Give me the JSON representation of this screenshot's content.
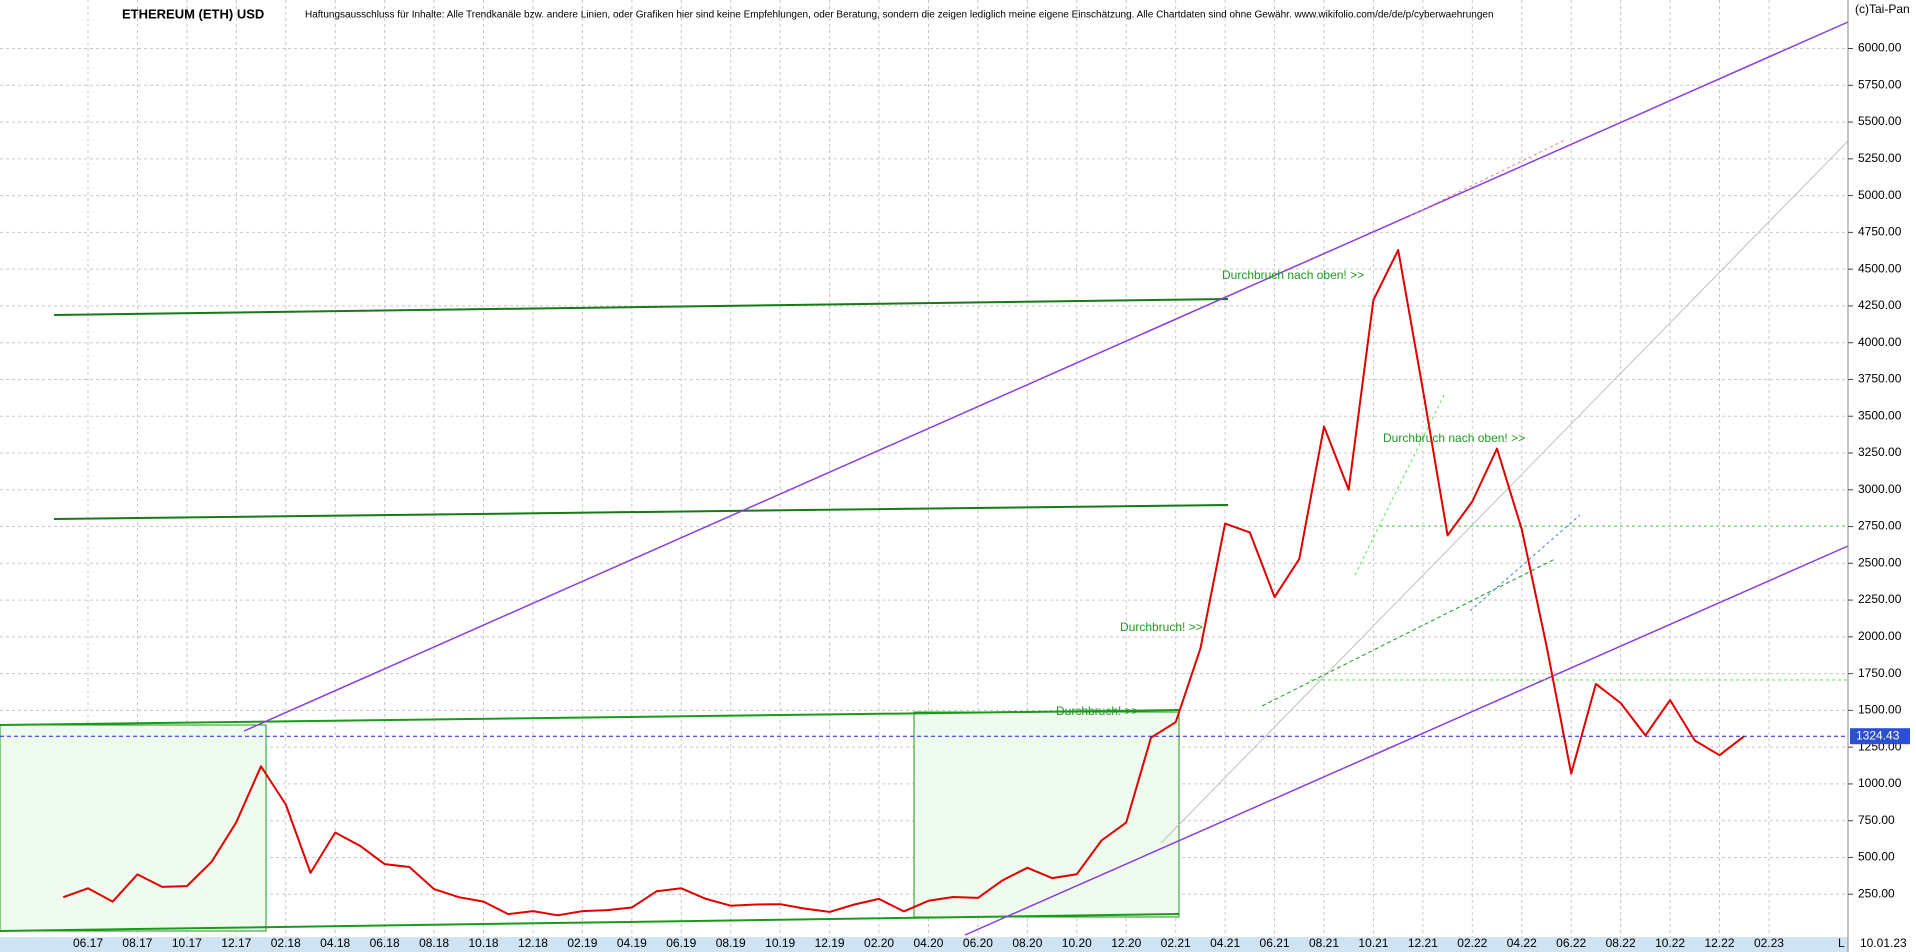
{
  "chart_data": {
    "type": "line",
    "title": "ETHEREUM (ETH) USD",
    "subtitle": "Haftungsausschluss für Inhalte: Alle Trendkanäle bzw. andere Linien, oder Grafiken hier sind keine Empfehlungen, oder Beratung, sondern die zeigen lediglich meine eigene Einschätzung. Alle Chartdaten sind ohne Gewähr.  www.wikifolio.com/de/de/p/cyberwaehrungen",
    "source": "(c)Tai-Pan",
    "date_label": "10.01.23",
    "scale_label": "L",
    "last_value": 1324.43,
    "x": [
      "05.17",
      "06.17",
      "07.17",
      "08.17",
      "09.17",
      "10.17",
      "11.17",
      "12.17",
      "01.18",
      "02.18",
      "03.18",
      "04.18",
      "05.18",
      "06.18",
      "07.18",
      "08.18",
      "09.18",
      "10.18",
      "11.18",
      "12.18",
      "01.19",
      "02.19",
      "03.19",
      "04.19",
      "05.19",
      "06.19",
      "07.19",
      "08.19",
      "09.19",
      "10.19",
      "11.19",
      "12.19",
      "01.20",
      "02.20",
      "03.20",
      "04.20",
      "05.20",
      "06.20",
      "07.20",
      "08.20",
      "09.20",
      "10.20",
      "11.20",
      "12.20",
      "01.21",
      "02.21",
      "03.21",
      "04.21",
      "05.21",
      "06.21",
      "07.21",
      "08.21",
      "09.21",
      "10.21",
      "11.21",
      "12.21",
      "01.22",
      "02.22",
      "03.22",
      "04.22",
      "05.22",
      "06.22",
      "07.22",
      "08.22",
      "09.22",
      "10.22",
      "11.22",
      "12.22",
      "01.23",
      "02.23"
    ],
    "series": [
      {
        "name": "ETH",
        "color": "#e00000",
        "values": [
          230,
          290,
          200,
          385,
          300,
          305,
          470,
          740,
          1120,
          860,
          395,
          670,
          580,
          455,
          435,
          285,
          230,
          200,
          115,
          135,
          107,
          135,
          142,
          160,
          270,
          290,
          218,
          172,
          180,
          182,
          152,
          130,
          180,
          218,
          133,
          205,
          231,
          225,
          345,
          430,
          360,
          386,
          615,
          737,
          1315,
          1420,
          1920,
          2770,
          2710,
          2270,
          2530,
          3430,
          3000,
          4290,
          4630,
          3680,
          2690,
          2920,
          3280,
          2730,
          1940,
          1070,
          1680,
          1550,
          1330,
          1570,
          1295,
          1195,
          1324.43,
          null
        ]
      }
    ],
    "xticks": [
      "06.17",
      "08.17",
      "10.17",
      "12.17",
      "02.18",
      "04.18",
      "06.18",
      "08.18",
      "10.18",
      "12.18",
      "02.19",
      "04.19",
      "06.19",
      "08.19",
      "10.19",
      "12.19",
      "02.20",
      "04.20",
      "06.20",
      "08.20",
      "10.20",
      "12.20",
      "02.21",
      "04.21",
      "06.21",
      "08.21",
      "10.21",
      "12.21",
      "02.22",
      "04.22",
      "06.22",
      "08.22",
      "10.22",
      "12.22",
      "02.23"
    ],
    "ylim": [
      0,
      6330
    ],
    "yticks": [
      {
        "value": 250,
        "label": "250.00"
      },
      {
        "value": 500,
        "label": "500.00"
      },
      {
        "value": 750,
        "label": "750.00"
      },
      {
        "value": 1000,
        "label": "1000.00"
      },
      {
        "value": 1250,
        "label": "1250.00"
      },
      {
        "value": 1500,
        "label": "1500.00"
      },
      {
        "value": 1750,
        "label": "1750.00"
      },
      {
        "value": 2000,
        "label": "2000.00"
      },
      {
        "value": 2250,
        "label": "2250.00"
      },
      {
        "value": 2500,
        "label": "2500.00"
      },
      {
        "value": 2750,
        "label": "2750.00"
      },
      {
        "value": 3000,
        "label": "3000.00"
      },
      {
        "value": 3250,
        "label": "3250.00"
      },
      {
        "value": 3500,
        "label": "3500.00"
      },
      {
        "value": 3750,
        "label": "3750.00"
      },
      {
        "value": 4000,
        "label": "4000.00"
      },
      {
        "value": 4250,
        "label": "4250.00"
      },
      {
        "value": 4500,
        "label": "4500.00"
      },
      {
        "value": 4750,
        "label": "4750.00"
      },
      {
        "value": 5000,
        "label": "5000.00"
      },
      {
        "value": 5250,
        "label": "5250.00"
      },
      {
        "value": 5500,
        "label": "5500.00"
      },
      {
        "value": 5750,
        "label": "5750.00"
      },
      {
        "value": 6000,
        "label": "6000.00"
      }
    ],
    "grid": true,
    "annotations": [
      "Durchbruch nach oben! >>",
      "Durchbruch nach oben! >>",
      "Durchbruch! >>",
      "Durchbruch! >>"
    ]
  }
}
